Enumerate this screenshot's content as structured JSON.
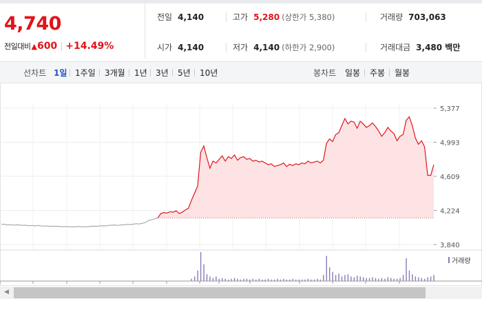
{
  "header": {
    "current_price": "4,740",
    "change_label": "전일대비",
    "change_arrow": "▲",
    "change_amount": "600",
    "change_rate": "+14.49%"
  },
  "stats": {
    "prev_close": {
      "label": "전일",
      "value": "4,140"
    },
    "open": {
      "label": "시가",
      "value": "4,140"
    },
    "high": {
      "label": "고가",
      "value": "5,280",
      "limit_label": "(상한가 5,380)"
    },
    "low": {
      "label": "저가",
      "value": "4,140",
      "limit_label": "(하한가 2,900)"
    },
    "volume": {
      "label": "거래량",
      "value": "703,063"
    },
    "trade_value": {
      "label": "거래대금",
      "value": "3,480 백만"
    }
  },
  "toolbar": {
    "line_chart_label": "선차트",
    "periods": [
      "1일",
      "1주일",
      "3개월",
      "1년",
      "3년",
      "5년",
      "10년"
    ],
    "active_period": "1일",
    "candle_chart_label": "봉차트",
    "candle_periods": [
      "일봉",
      "주봉",
      "월봉"
    ]
  },
  "colors": {
    "up": "#e0141a",
    "flat": "#9a9a9a",
    "fill": "#fde3e4",
    "volume": "#8a78b6",
    "active_tab": "#1f55c1"
  },
  "chart_data": {
    "type": "line",
    "title": "",
    "xlabel": "",
    "ylabel": "",
    "yticks": [
      "5,377",
      "4,993",
      "4,609",
      "4,224",
      "3,840"
    ],
    "ytick_values": [
      5377,
      4993,
      4609,
      4224,
      3840
    ],
    "ylim": [
      3840,
      5377
    ],
    "baseline": 4140,
    "grid": true,
    "series": [
      {
        "values": [
          4070,
          4068,
          4060,
          4065,
          4058,
          4062,
          4060,
          4055,
          4058,
          4052,
          4055,
          4050,
          4055,
          4050,
          4048,
          4050,
          4045,
          4048,
          4045,
          4046,
          4040,
          4044,
          4040,
          4042,
          4038,
          4045,
          4040,
          4042,
          4040,
          4045,
          4048,
          4046,
          4050,
          4052,
          4050,
          4055,
          4058,
          4060,
          4055,
          4062,
          4060,
          4068,
          4065,
          4070,
          4075,
          4072,
          4080,
          4090,
          4110,
          4120,
          4130,
          4140,
          4190,
          4200,
          4195,
          4210,
          4205,
          4220,
          4190,
          4205,
          4230,
          4250,
          4340,
          4420,
          4500,
          4880,
          4950,
          4820,
          4700,
          4780,
          4760,
          4800,
          4840,
          4780,
          4830,
          4810,
          4850,
          4790,
          4820,
          4830,
          4800,
          4810,
          4780,
          4790,
          4770,
          4780,
          4760,
          4740,
          4750,
          4720,
          4730,
          4740,
          4760,
          4720,
          4745,
          4730,
          4750,
          4740,
          4760,
          4750,
          4780,
          4760,
          4770,
          4780,
          4760,
          4790,
          4980,
          5030,
          5000,
          5080,
          5100,
          5180,
          5260,
          5200,
          5230,
          5220,
          5150,
          5230,
          5200,
          5160,
          5180,
          5210,
          5170,
          5120,
          5060,
          5100,
          5160,
          5120,
          5090,
          5010,
          5060,
          5080,
          5240,
          5280,
          5180,
          5040,
          4970,
          5010,
          4940,
          4620,
          4620,
          4740
        ],
        "volume": [
          0,
          0,
          0,
          0,
          0,
          0,
          0,
          0,
          0,
          0,
          0,
          0,
          0,
          0,
          0,
          0,
          0,
          0,
          0,
          0,
          0,
          0,
          0,
          0,
          0,
          0,
          0,
          0,
          0,
          0,
          0,
          0,
          0,
          0,
          0,
          0,
          0,
          0,
          0,
          0,
          0,
          0,
          0,
          0,
          0,
          0,
          0,
          0,
          0,
          0,
          0,
          0,
          0,
          0,
          0,
          0,
          0,
          0,
          0,
          0,
          0,
          0,
          3,
          6,
          14,
          38,
          22,
          9,
          6,
          4,
          6,
          3,
          4,
          3,
          2,
          3,
          4,
          3,
          2,
          3,
          3,
          2,
          3,
          2,
          3,
          2,
          2,
          3,
          2,
          2,
          3,
          2,
          3,
          2,
          2,
          3,
          2,
          2,
          2,
          2,
          3,
          2,
          2,
          3,
          2,
          8,
          33,
          18,
          12,
          8,
          10,
          6,
          8,
          9,
          6,
          5,
          7,
          6,
          5,
          4,
          4,
          5,
          4,
          3,
          4,
          3,
          5,
          4,
          3,
          3,
          4,
          8,
          30,
          14,
          9,
          6,
          5,
          4,
          3,
          5,
          6,
          8
        ]
      }
    ],
    "volume_legend": "거래량"
  }
}
